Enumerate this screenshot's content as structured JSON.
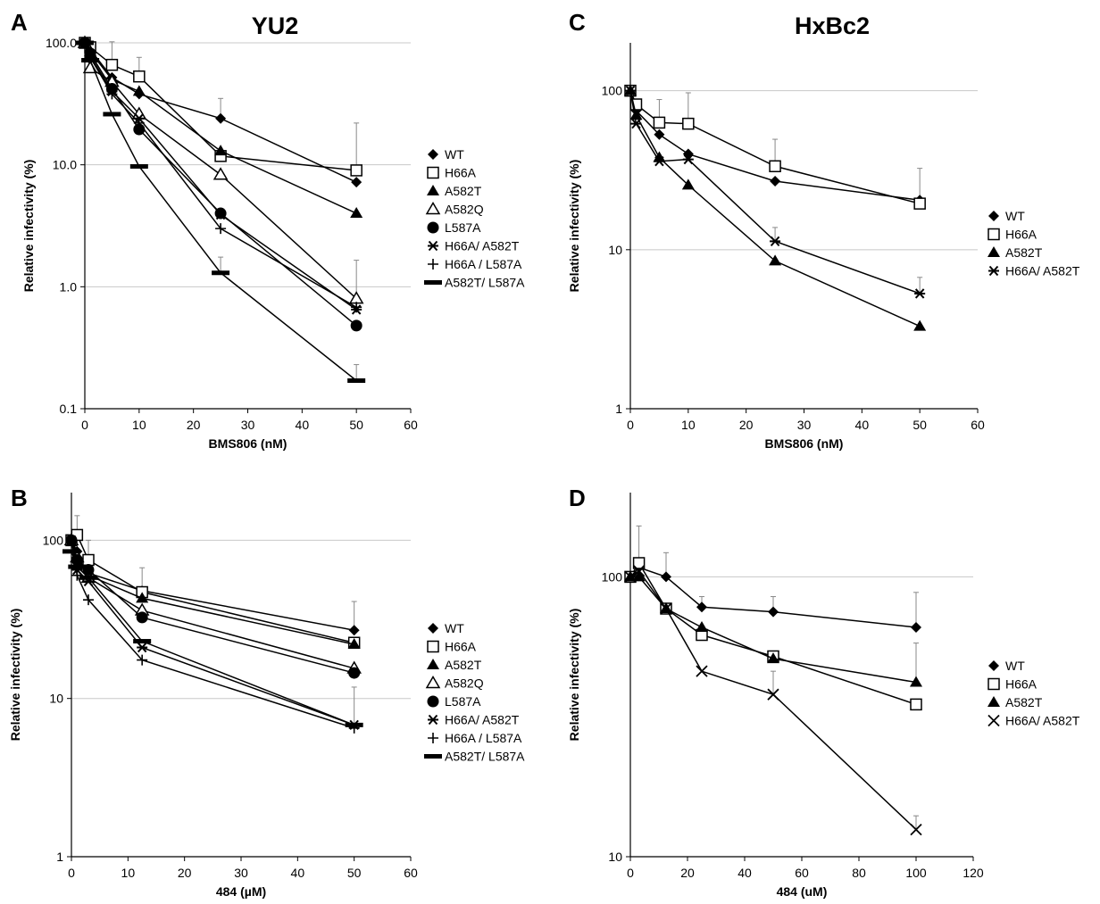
{
  "chart_data": [
    {
      "panel": "A",
      "title": "YU2",
      "type": "line",
      "xlabel": "BMS806 (nM)",
      "ylabel": "Relative infectivity (%)",
      "xlim": [
        0,
        60
      ],
      "ylim": [
        0.1,
        100
      ],
      "yscale": "log",
      "xticks": [
        0,
        10,
        20,
        30,
        40,
        50,
        60
      ],
      "yticks": [
        0.1,
        1,
        10,
        100
      ],
      "ytick_labels": [
        "0.1",
        "1.0",
        "10.0",
        "100.0"
      ],
      "x": [
        0,
        1,
        5,
        10,
        25,
        50
      ],
      "series": [
        {
          "name": "WT",
          "marker": "diamond",
          "values": [
            100,
            88,
            52,
            38,
            24,
            7.2
          ],
          "errors": [
            0,
            0,
            0,
            0,
            11,
            0
          ]
        },
        {
          "name": "H66A",
          "marker": "square",
          "values": [
            100,
            92,
            66,
            53,
            11.8,
            9.0
          ],
          "errors": [
            0,
            0,
            36,
            23,
            0,
            13
          ]
        },
        {
          "name": "A582T",
          "marker": "triangle",
          "values": [
            100,
            85,
            50,
            40,
            13,
            4.0
          ],
          "errors": [
            0,
            0,
            0,
            0,
            0,
            0
          ]
        },
        {
          "name": "A582Q",
          "marker": "triangle-open",
          "values": [
            100,
            62,
            48,
            26,
            8.3,
            0.8
          ],
          "errors": [
            0,
            0,
            0,
            0,
            0,
            0.85
          ]
        },
        {
          "name": "L587A",
          "marker": "circle",
          "values": [
            100,
            82,
            42,
            19.5,
            4.0,
            0.48
          ],
          "errors": [
            0,
            0,
            0,
            0,
            0,
            0
          ]
        },
        {
          "name": "H66A/ A582T",
          "marker": "asterisk",
          "values": [
            100,
            78,
            40,
            24,
            3.9,
            0.65
          ],
          "errors": [
            0,
            0,
            0,
            0,
            0,
            0
          ]
        },
        {
          "name": "H66A / L587A",
          "marker": "plus",
          "values": [
            100,
            76,
            38,
            22,
            3.0,
            0.68
          ],
          "errors": [
            0,
            0,
            0,
            0,
            0,
            0
          ]
        },
        {
          "name": "A582T/ L587A",
          "marker": "dash",
          "values": [
            100,
            72,
            26,
            9.7,
            1.3,
            0.17
          ],
          "errors": [
            0,
            0,
            0,
            0,
            0.45,
            0.06
          ]
        }
      ]
    },
    {
      "panel": "B",
      "title": "",
      "type": "line",
      "xlabel": "484 (µM)",
      "ylabel": "Relative infectivity (%)",
      "xlim": [
        0,
        60
      ],
      "ylim": [
        1,
        200
      ],
      "yscale": "log",
      "xticks": [
        0,
        10,
        20,
        30,
        40,
        50,
        60
      ],
      "yticks": [
        1,
        10,
        100
      ],
      "ytick_labels": [
        "1",
        "10",
        "100"
      ],
      "x": [
        0,
        1,
        3,
        12.5,
        50
      ],
      "series": [
        {
          "name": "WT",
          "marker": "diamond",
          "values": [
            100,
            85,
            62,
            48,
            27
          ],
          "errors": [
            0,
            0,
            0,
            0,
            14
          ]
        },
        {
          "name": "H66A",
          "marker": "square",
          "values": [
            100,
            108,
            75,
            47,
            22.5
          ],
          "errors": [
            0,
            35,
            25,
            20,
            0
          ]
        },
        {
          "name": "A582T",
          "marker": "triangle",
          "values": [
            100,
            80,
            60,
            43,
            22
          ],
          "errors": [
            0,
            0,
            0,
            0,
            0
          ]
        },
        {
          "name": "A582Q",
          "marker": "triangle-open",
          "values": [
            100,
            78,
            58,
            36,
            15.5
          ],
          "errors": [
            0,
            0,
            0,
            0,
            0
          ]
        },
        {
          "name": "L587A",
          "marker": "circle",
          "values": [
            100,
            75,
            65,
            32.5,
            14.5
          ],
          "errors": [
            0,
            0,
            0,
            0,
            0
          ]
        },
        {
          "name": "H66A/ A582T",
          "marker": "asterisk",
          "values": [
            100,
            65,
            55,
            21,
            6.8
          ],
          "errors": [
            0,
            0,
            0,
            0,
            5
          ]
        },
        {
          "name": "H66A / L587A",
          "marker": "plus",
          "values": [
            100,
            60,
            42,
            17.5,
            6.5
          ],
          "errors": [
            0,
            0,
            0,
            0,
            0
          ]
        },
        {
          "name": "A582T/ L587A",
          "marker": "dash",
          "values": [
            85,
            68,
            58,
            23,
            6.8
          ],
          "errors": [
            0,
            0,
            0,
            0,
            0
          ]
        }
      ]
    },
    {
      "panel": "C",
      "title": "HxBc2",
      "type": "line",
      "xlabel": "BMS806 (nM)",
      "ylabel": "Relative infectivity (%)",
      "xlim": [
        0,
        60
      ],
      "ylim": [
        1,
        200
      ],
      "yscale": "log",
      "xticks": [
        0,
        10,
        20,
        30,
        40,
        50,
        60
      ],
      "yticks": [
        1,
        10,
        100
      ],
      "ytick_labels": [
        "1",
        "10",
        "100"
      ],
      "x": [
        0,
        1,
        5,
        10,
        25,
        50
      ],
      "series": [
        {
          "name": "WT",
          "marker": "diamond",
          "values": [
            100,
            75,
            53,
            40,
            27,
            20.5
          ],
          "errors": [
            0,
            0,
            0,
            0,
            0,
            12
          ]
        },
        {
          "name": "H66A",
          "marker": "square",
          "values": [
            100,
            82,
            63,
            62,
            33.5,
            19.5
          ],
          "errors": [
            0,
            0,
            25,
            35,
            16,
            0
          ]
        },
        {
          "name": "A582T",
          "marker": "triangle",
          "values": [
            100,
            70,
            38,
            25.5,
            8.5,
            3.3
          ],
          "errors": [
            0,
            0,
            0,
            0,
            0,
            0
          ]
        },
        {
          "name": "H66A/ A582T",
          "marker": "asterisk",
          "values": [
            100,
            62,
            36,
            37,
            11.3,
            5.3
          ],
          "errors": [
            0,
            0,
            0,
            0,
            2.5,
            1.4
          ]
        }
      ]
    },
    {
      "panel": "D",
      "title": "",
      "type": "line",
      "xlabel": "484 (uM)",
      "ylabel": "Relative infectivity (%)",
      "xlim": [
        0,
        120
      ],
      "ylim": [
        10,
        200
      ],
      "yscale": "log",
      "xticks": [
        0,
        20,
        40,
        60,
        80,
        100,
        120
      ],
      "yticks": [
        10,
        100
      ],
      "ytick_labels": [
        "10",
        "100"
      ],
      "x": [
        0,
        3,
        12.5,
        25,
        50,
        100
      ],
      "series": [
        {
          "name": "WT",
          "marker": "diamond",
          "values": [
            100,
            108,
            100,
            78,
            75,
            66
          ],
          "errors": [
            0,
            0,
            22,
            7,
            10,
            22
          ]
        },
        {
          "name": "H66A",
          "marker": "square",
          "values": [
            100,
            112,
            77,
            62,
            52,
            35
          ],
          "errors": [
            0,
            40,
            0,
            0,
            0,
            0
          ]
        },
        {
          "name": "A582T",
          "marker": "triangle",
          "values": [
            100,
            100,
            77,
            66,
            51,
            42
          ],
          "errors": [
            0,
            0,
            0,
            0,
            0,
            16
          ]
        },
        {
          "name": "H66A/ A582T",
          "marker": "x",
          "values": [
            100,
            105,
            77,
            46,
            38,
            12.5
          ],
          "errors": [
            0,
            0,
            0,
            0,
            8,
            1.5
          ]
        }
      ]
    }
  ]
}
